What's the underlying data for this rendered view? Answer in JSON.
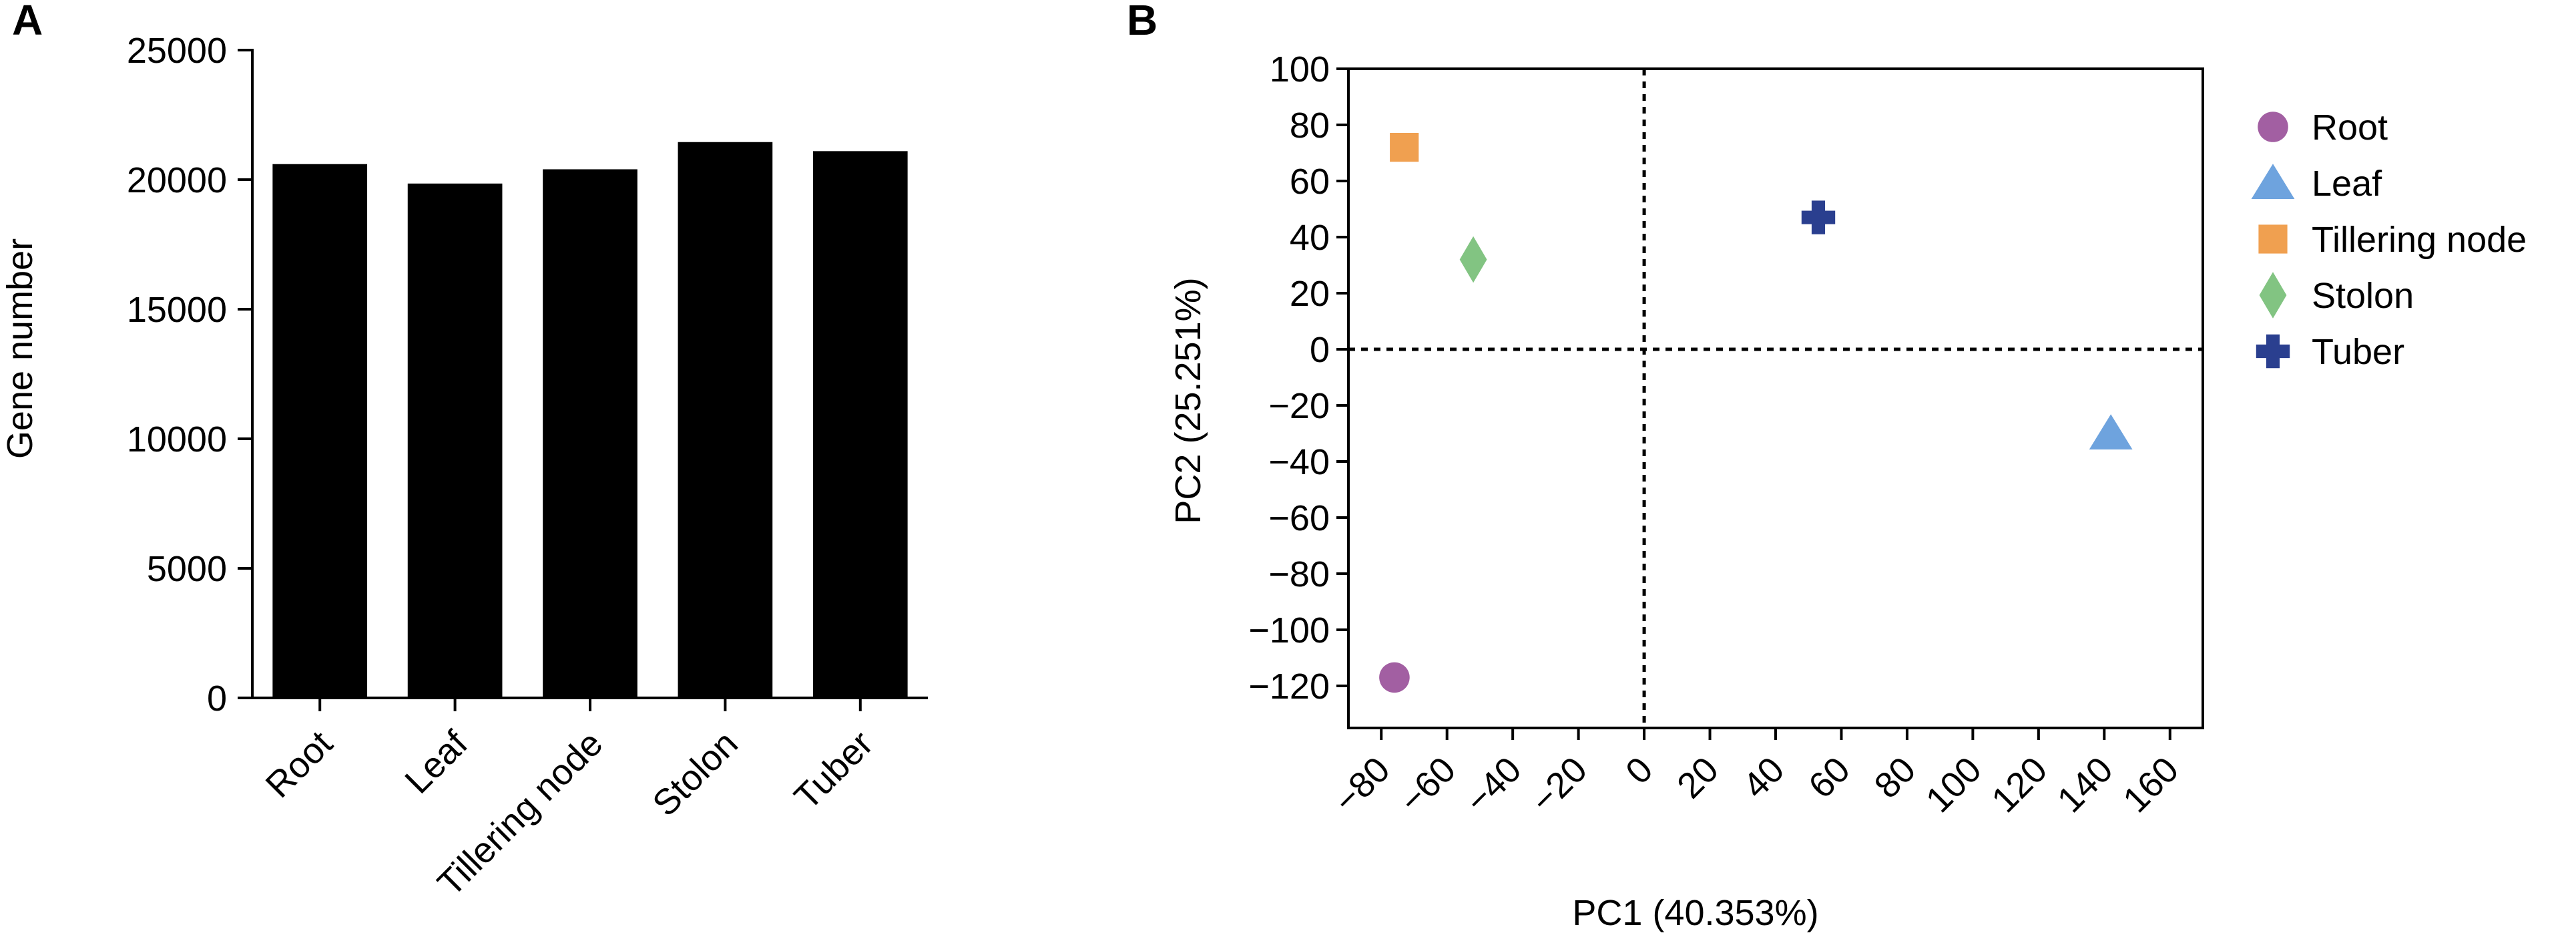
{
  "chart_data": [
    {
      "panel": "A",
      "type": "bar",
      "ylabel": "Gene number",
      "xlabel": "",
      "ylim": [
        0,
        25000
      ],
      "yticks": [
        0,
        5000,
        10000,
        15000,
        20000,
        25000
      ],
      "categories": [
        "Root",
        "Leaf",
        "Tillering node",
        "Stolon",
        "Tuber"
      ],
      "values": [
        20600,
        19850,
        20400,
        21450,
        21100
      ],
      "bar_color": "#000000",
      "grid": false
    },
    {
      "panel": "B",
      "type": "scatter",
      "xlabel": "PC1 (40.353%)",
      "ylabel": "PC2 (25.251%)",
      "xlim": [
        -90,
        170
      ],
      "ylim": [
        -135,
        100
      ],
      "xticks": [
        -80,
        -60,
        -40,
        -20,
        0,
        20,
        40,
        60,
        80,
        100,
        120,
        140,
        160
      ],
      "yticks": [
        100,
        80,
        60,
        40,
        20,
        0,
        -20,
        -40,
        -60,
        -80,
        -100,
        -120
      ],
      "reference_lines": {
        "x": 0,
        "y": 0,
        "style": "dotted"
      },
      "legend_position": "right",
      "grid": false,
      "points": [
        {
          "name": "Root",
          "x": -76,
          "y": -117,
          "marker": "circle",
          "color": "#a25fa2"
        },
        {
          "name": "Leaf",
          "x": 142,
          "y": -30,
          "marker": "triangle",
          "color": "#6ea3de"
        },
        {
          "name": "Tillering node",
          "x": -73,
          "y": 72,
          "marker": "square",
          "color": "#f0a050"
        },
        {
          "name": "Stolon",
          "x": -52,
          "y": 32,
          "marker": "diamond",
          "color": "#82c482"
        },
        {
          "name": "Tuber",
          "x": 53,
          "y": 47,
          "marker": "cross",
          "color": "#2a3f8f"
        }
      ]
    }
  ]
}
